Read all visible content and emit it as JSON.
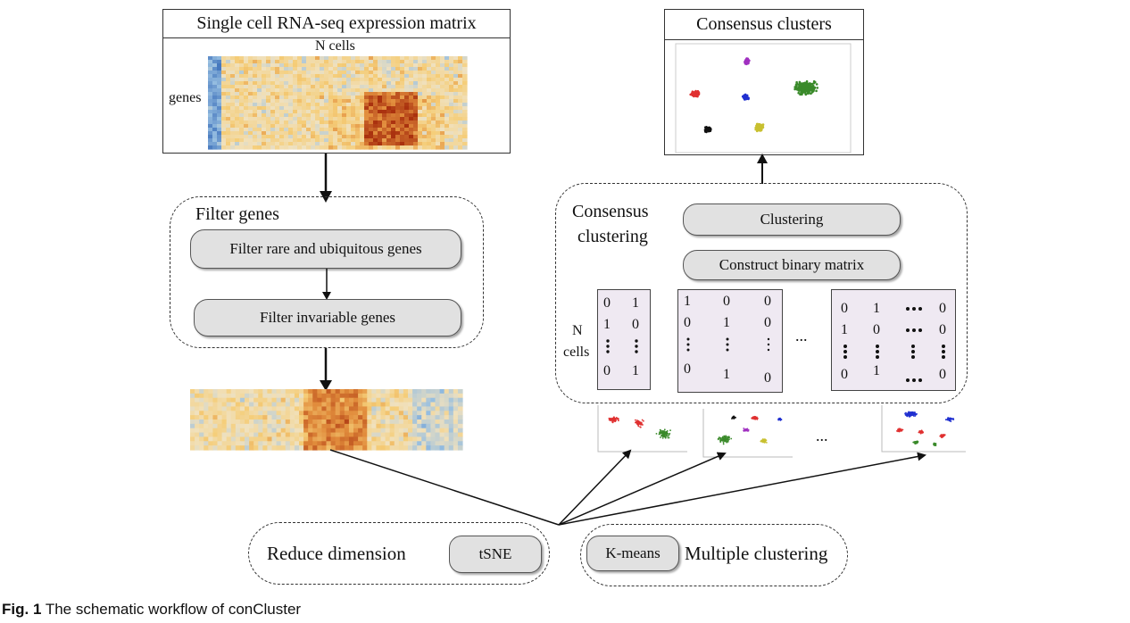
{
  "input_matrix": {
    "title": "Single cell RNA-seq expression matrix",
    "cols_label": "N cells",
    "rows_label": "genes"
  },
  "filter_genes": {
    "title": "Filter genes",
    "step1": "Filter rare and ubiquitous genes",
    "step2": "Filter invariable genes"
  },
  "consensus": {
    "title_line1": "Consensus",
    "title_line2": "clustering",
    "clustering": "Clustering",
    "construct": "Construct binary matrix",
    "rows_label_line1": "N",
    "rows_label_line2": "cells",
    "ellipsis": "...",
    "matrix1": [
      [
        "0",
        "1"
      ],
      [
        "1",
        "0"
      ],
      [
        "0",
        "1"
      ]
    ],
    "matrix2": [
      [
        "1",
        "0",
        "0"
      ],
      [
        "0",
        "1",
        "0"
      ],
      [
        "0",
        "1",
        "0"
      ]
    ],
    "matrix3": [
      [
        "0",
        "1",
        "0"
      ],
      [
        "1",
        "0",
        "0"
      ],
      [
        "0",
        "1",
        "0"
      ]
    ]
  },
  "output": {
    "title": "Consensus clusters"
  },
  "mini_plots_ellipsis": "...",
  "reduce": {
    "label": "Reduce dimension",
    "method": "tSNE"
  },
  "multi": {
    "method": "K-means",
    "label": "Multiple clustering"
  },
  "caption": {
    "prefix": "Fig. 1",
    "text": " The schematic workflow of conCluster"
  },
  "colors": {
    "cluster_green": "#3a8a2a",
    "cluster_red": "#e03030",
    "cluster_blue": "#2030d0",
    "cluster_purple": "#a030c0",
    "cluster_yellow": "#c8c030",
    "cluster_black": "#111111",
    "heat_high": "#b03a10",
    "heat_mid": "#f0d090",
    "heat_low": "#6a9ac8"
  }
}
